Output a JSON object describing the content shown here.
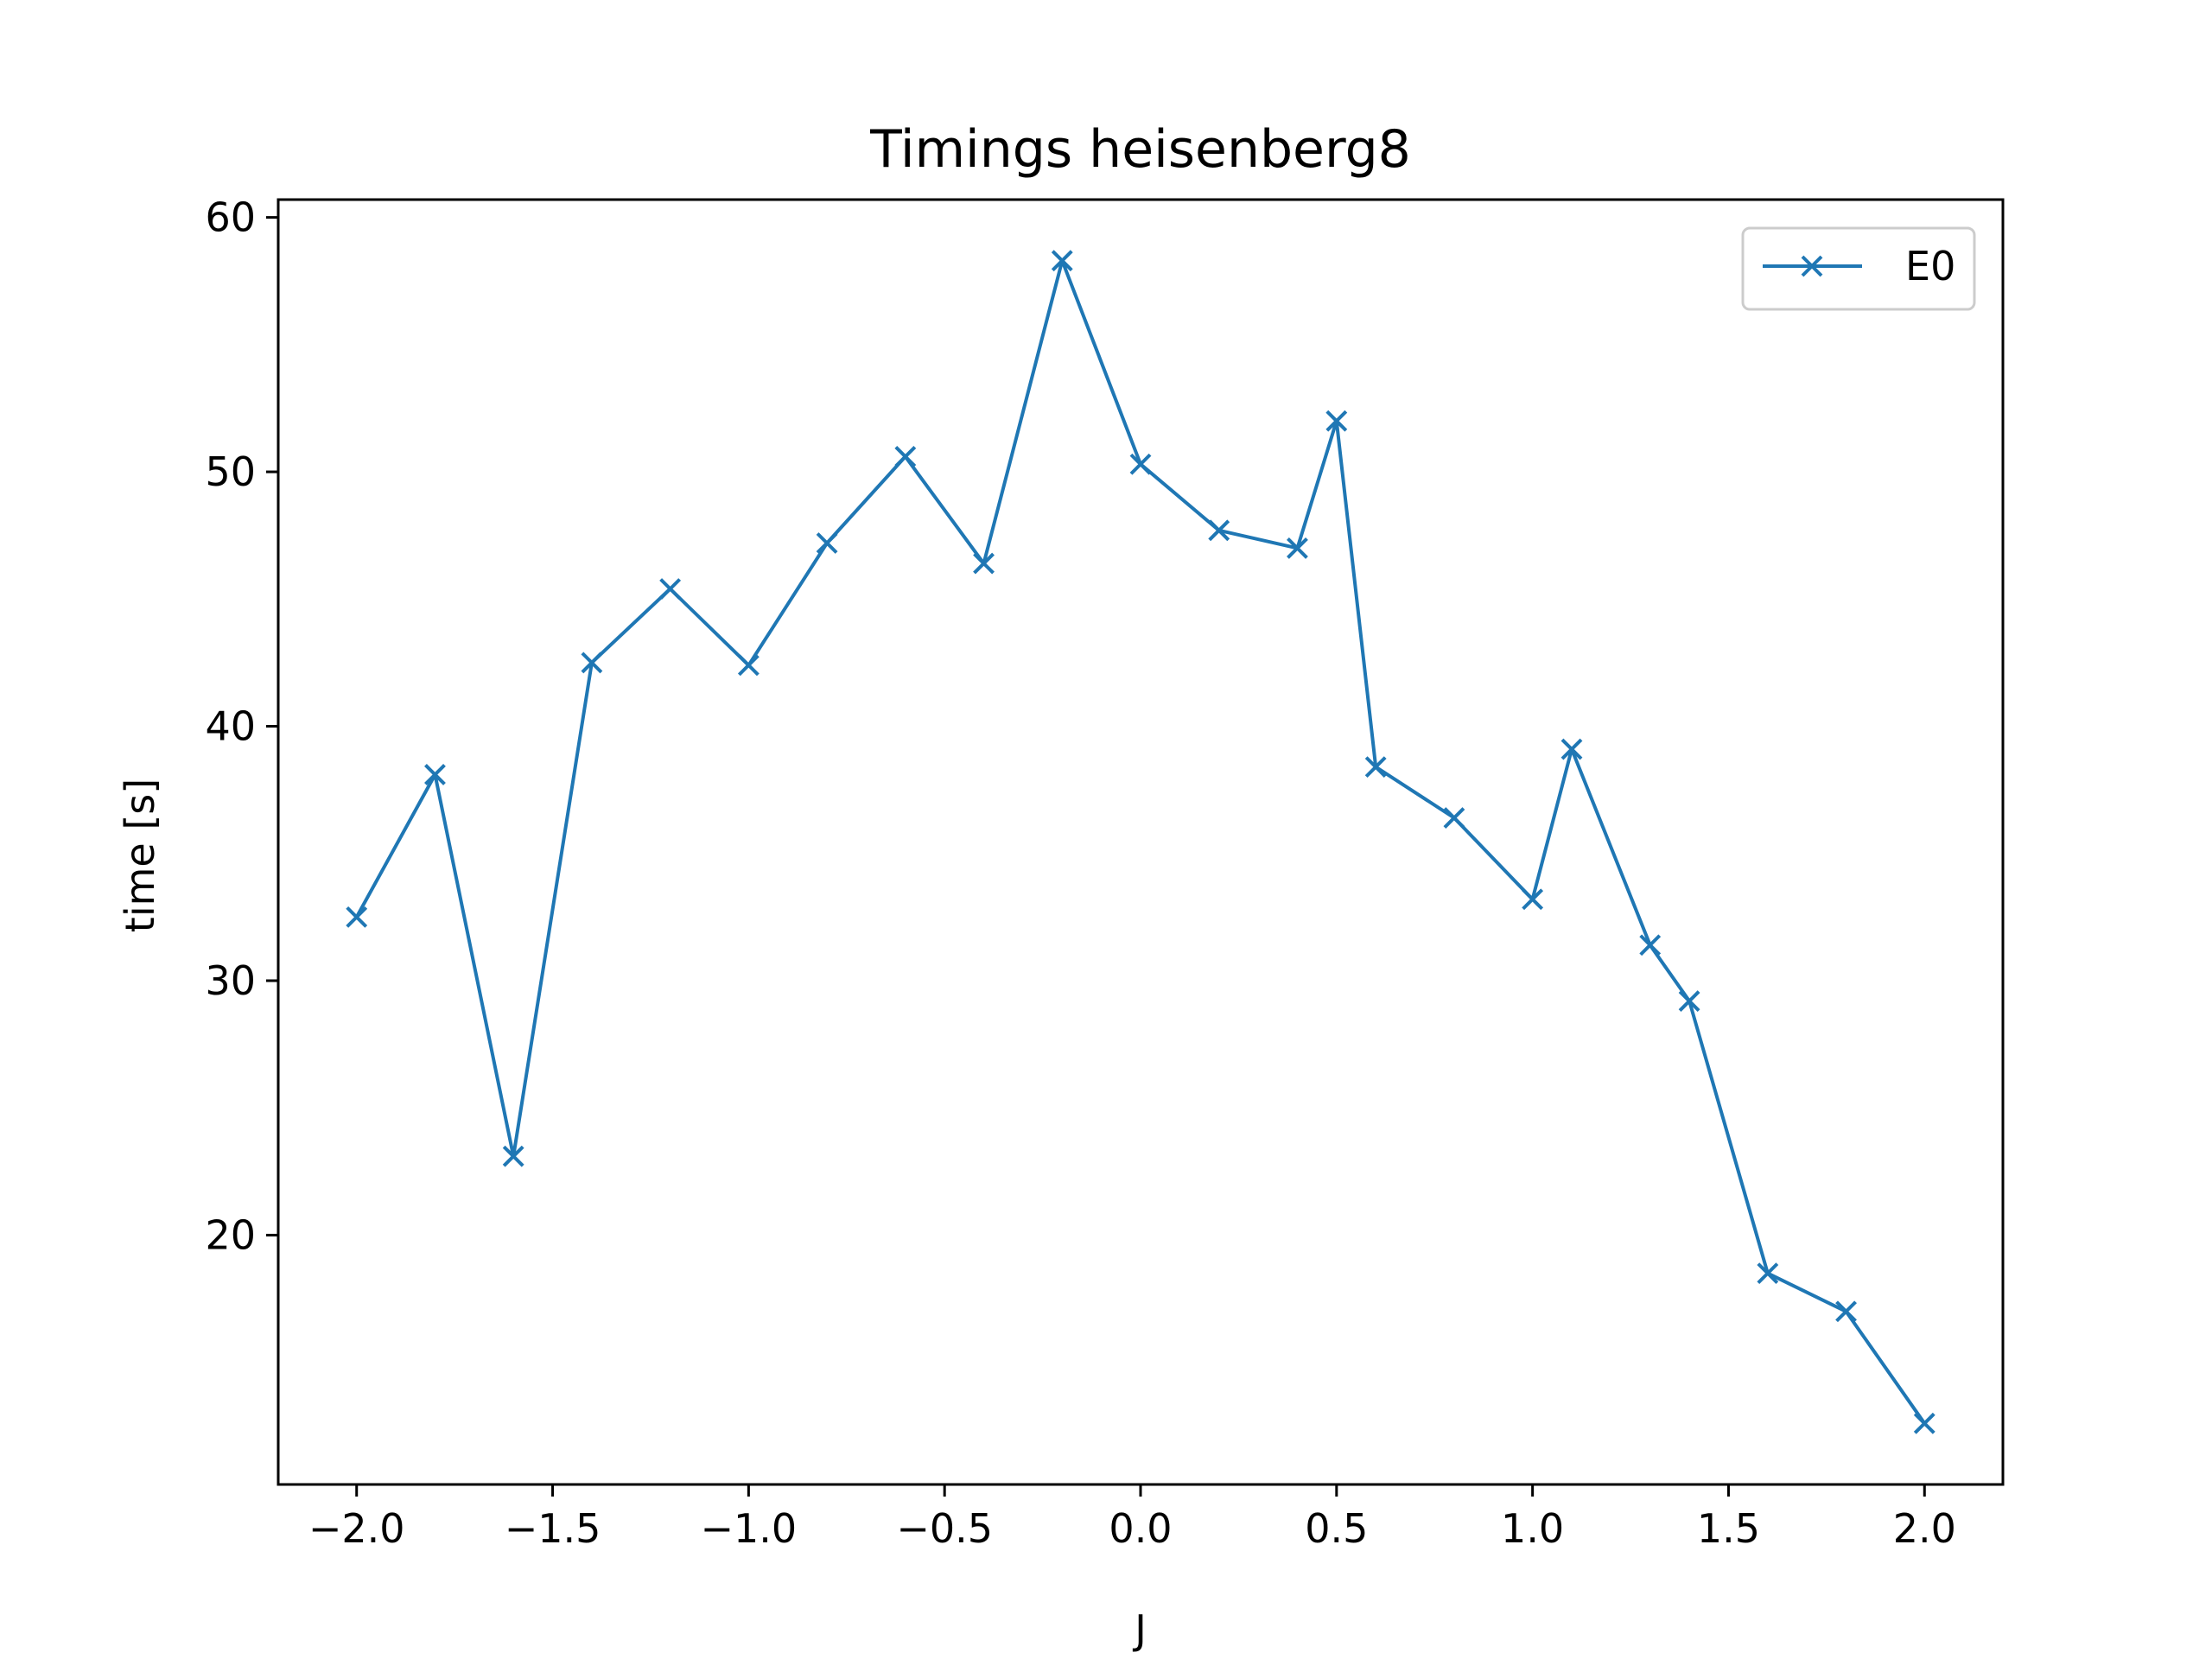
{
  "chart_data": {
    "type": "line",
    "title": "Timings heisenberg8",
    "xlabel": "J",
    "ylabel": "time [s]",
    "xlim": [
      -2.2,
      2.2
    ],
    "ylim": [
      10.2,
      60.7
    ],
    "xticks": [
      -2.0,
      -1.5,
      -1.0,
      -0.5,
      0.0,
      0.5,
      1.0,
      1.5,
      2.0
    ],
    "xtick_labels": [
      "−2.0",
      "−1.5",
      "−1.0",
      "−0.5",
      "0.0",
      "0.5",
      "1.0",
      "1.5",
      "2.0"
    ],
    "yticks": [
      20,
      30,
      40,
      50,
      60
    ],
    "ytick_labels": [
      "20",
      "30",
      "40",
      "50",
      "60"
    ],
    "grid": false,
    "legend_position": "top-right",
    "series": [
      {
        "name": "E0",
        "color": "#1f77b4",
        "marker": "x",
        "x": [
          -2.0,
          -1.8,
          -1.6,
          -1.4,
          -1.2,
          -1.0,
          -0.8,
          -0.6,
          -0.4,
          -0.2,
          0.0,
          0.2,
          0.4,
          0.5,
          0.6,
          0.8,
          1.0,
          1.1,
          1.3,
          1.4,
          1.6,
          1.8,
          2.0
        ],
        "y": [
          32.5,
          38.1,
          23.1,
          42.5,
          45.4,
          42.4,
          47.2,
          50.6,
          46.4,
          58.3,
          50.3,
          47.7,
          47.0,
          52.0,
          38.4,
          36.4,
          33.2,
          39.1,
          31.4,
          29.2,
          18.5,
          17.0,
          12.6
        ]
      }
    ]
  }
}
